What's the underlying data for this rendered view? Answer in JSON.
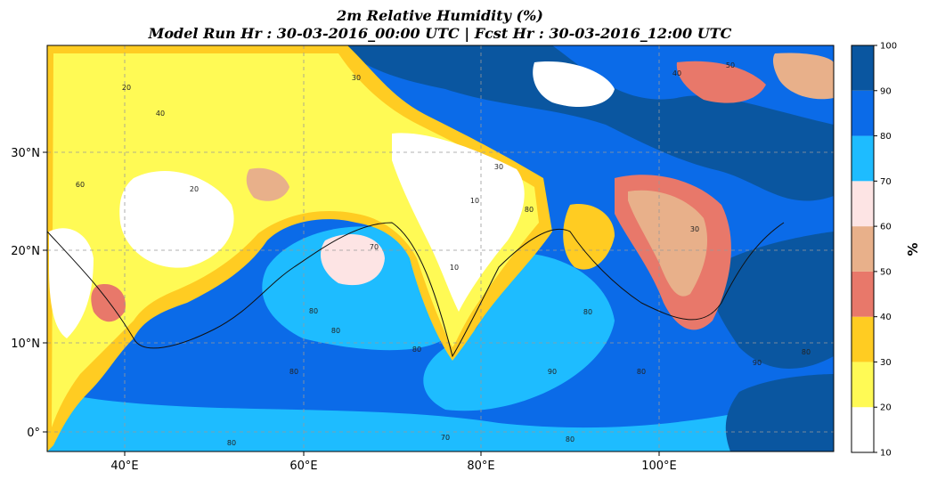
{
  "title_line1": "2m Relative Humidity (%)",
  "title_line2": "Model Run Hr : 30-03-2016_00:00 UTC  |  Fcst Hr : 30-03-2016_12:00 UTC",
  "map": {
    "lon_ticks": [
      "40°E",
      "60°E",
      "80°E",
      "100°E"
    ],
    "lat_ticks": [
      "30°N",
      "20°N",
      "10°N",
      "0°"
    ],
    "grid": "dashed",
    "contour_labels": [
      "10",
      "20",
      "30",
      "40",
      "50",
      "60",
      "70",
      "80",
      "90"
    ]
  },
  "colorbar": {
    "label": "%",
    "ticks": [
      "10",
      "20",
      "30",
      "40",
      "50",
      "60",
      "70",
      "80",
      "90",
      "100"
    ],
    "colors": [
      "#ffffff",
      "#fffa55",
      "#ffcc22",
      "#e8786a",
      "#e8b08a",
      "#fde4e4",
      "#1ebcff",
      "#0b6be8",
      "#0a56a0"
    ]
  }
}
